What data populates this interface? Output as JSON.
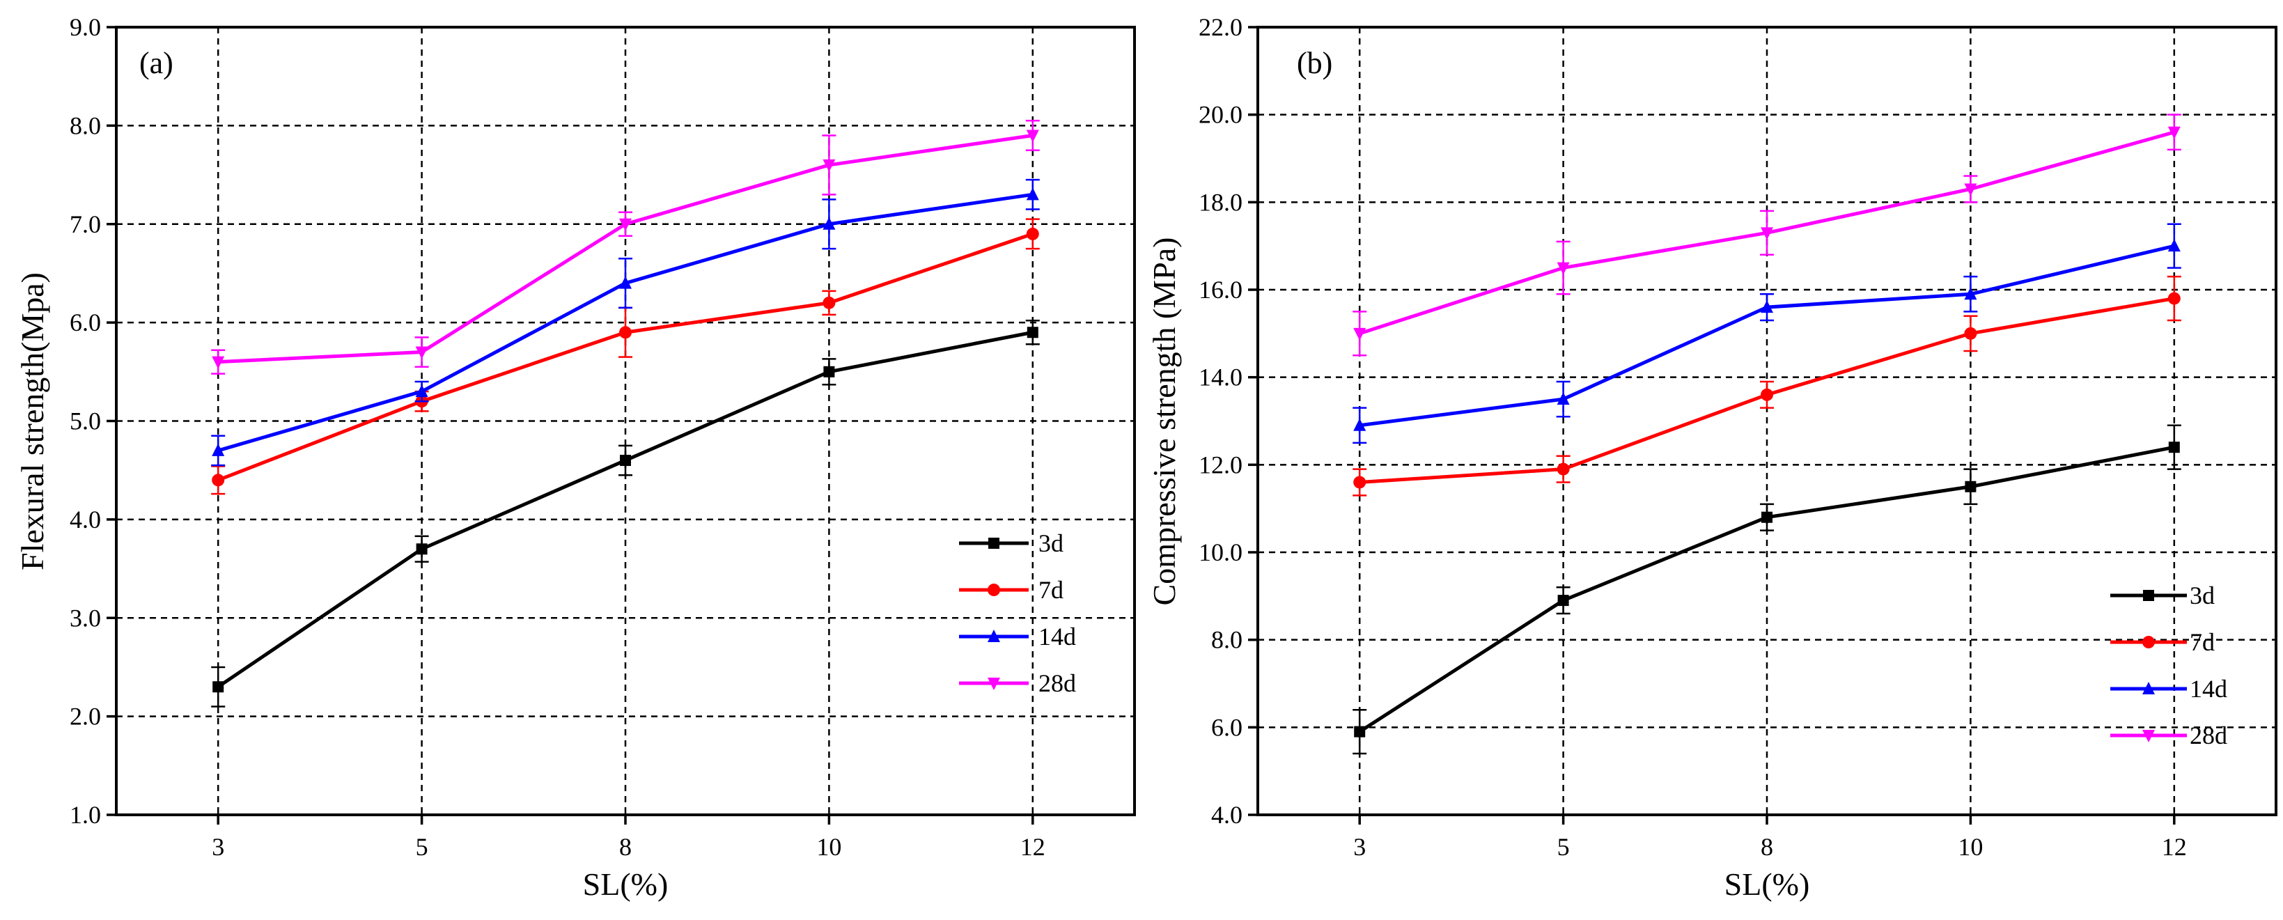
{
  "chart_data": [
    {
      "panel": "(a)",
      "type": "line",
      "xlabel": "SL(%)",
      "ylabel": "Flexural strength(Mpa)",
      "categories": [
        "3",
        "5",
        "8",
        "10",
        "12"
      ],
      "ylim": [
        1.0,
        9.0
      ],
      "yticks": [
        "1.0",
        "2.0",
        "3.0",
        "4.0",
        "5.0",
        "6.0",
        "7.0",
        "8.0",
        "9.0"
      ],
      "grid": true,
      "legend_position": "lower-right",
      "series": [
        {
          "name": "3d",
          "color": "#000000",
          "marker": "square",
          "values": [
            2.3,
            3.7,
            4.6,
            5.5,
            5.9
          ],
          "errors": [
            0.2,
            0.13,
            0.15,
            0.13,
            0.12
          ]
        },
        {
          "name": "7d",
          "color": "#ff0000",
          "marker": "circle",
          "values": [
            4.4,
            5.2,
            5.9,
            6.2,
            6.9
          ],
          "errors": [
            0.14,
            0.1,
            0.25,
            0.12,
            0.15
          ]
        },
        {
          "name": "14d",
          "color": "#0000ff",
          "marker": "triangle-up",
          "values": [
            4.7,
            5.3,
            6.4,
            7.0,
            7.3
          ],
          "errors": [
            0.15,
            0.1,
            0.25,
            0.25,
            0.15
          ]
        },
        {
          "name": "28d",
          "color": "#ff00ff",
          "marker": "triangle-down",
          "values": [
            5.6,
            5.7,
            7.0,
            7.6,
            7.9
          ],
          "errors": [
            0.12,
            0.15,
            0.12,
            0.3,
            0.15
          ]
        }
      ]
    },
    {
      "panel": "(b)",
      "type": "line",
      "xlabel": "SL(%)",
      "ylabel": "Compressive strength (MPa)",
      "categories": [
        "3",
        "5",
        "8",
        "10",
        "12"
      ],
      "ylim": [
        4.0,
        22.0
      ],
      "yticks": [
        "4.0",
        "6.0",
        "8.0",
        "10.0",
        "12.0",
        "14.0",
        "16.0",
        "18.0",
        "20.0",
        "22.0"
      ],
      "grid": true,
      "legend_position": "lower-right",
      "series": [
        {
          "name": "3d",
          "color": "#000000",
          "marker": "square",
          "values": [
            5.9,
            8.9,
            10.8,
            11.5,
            12.4
          ],
          "errors": [
            0.5,
            0.3,
            0.3,
            0.4,
            0.5
          ]
        },
        {
          "name": "7d",
          "color": "#ff0000",
          "marker": "circle",
          "values": [
            11.6,
            11.9,
            13.6,
            15.0,
            15.8
          ],
          "errors": [
            0.3,
            0.3,
            0.3,
            0.4,
            0.5
          ]
        },
        {
          "name": "14d",
          "color": "#0000ff",
          "marker": "triangle-up",
          "values": [
            12.9,
            13.5,
            15.6,
            15.9,
            17.0
          ],
          "errors": [
            0.4,
            0.4,
            0.3,
            0.4,
            0.5
          ]
        },
        {
          "name": "28d",
          "color": "#ff00ff",
          "marker": "triangle-down",
          "values": [
            15.0,
            16.5,
            17.3,
            18.3,
            19.6
          ],
          "errors": [
            0.5,
            0.6,
            0.5,
            0.3,
            0.4
          ]
        }
      ]
    }
  ]
}
